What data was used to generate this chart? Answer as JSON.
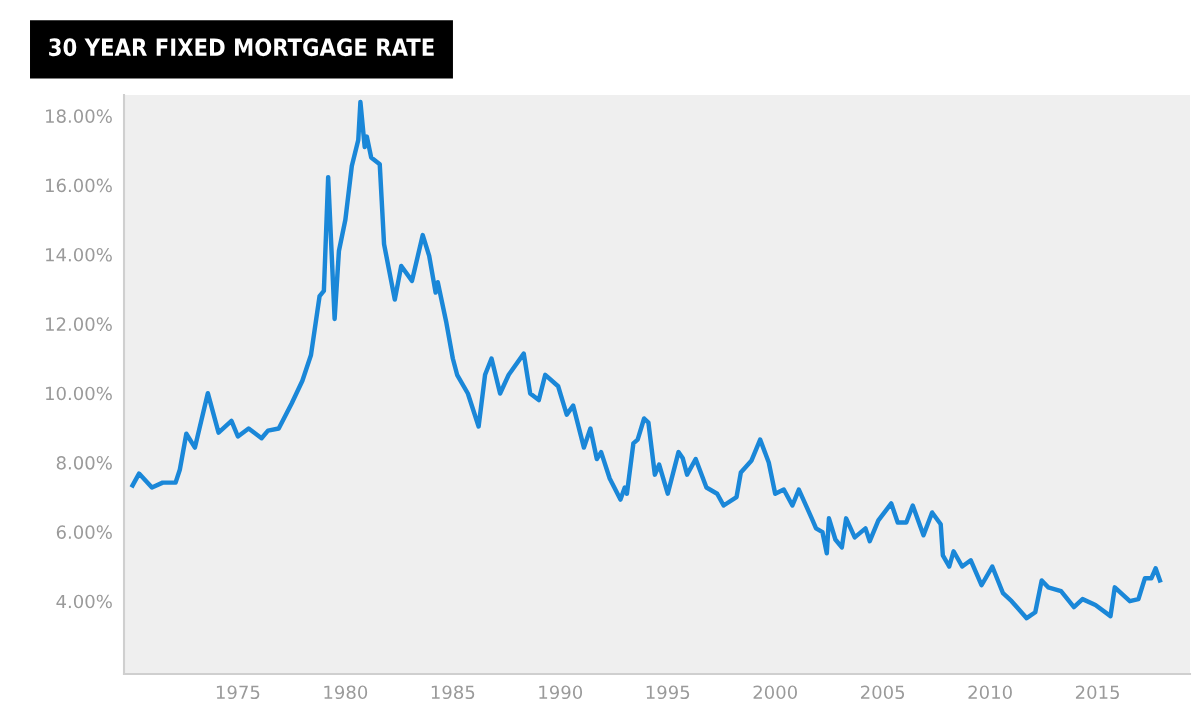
{
  "chart_data": {
    "type": "line",
    "title": "30 YEAR FIXED MORTGAGE RATE",
    "x": [
      1970.1,
      1970.4,
      1971.0,
      1971.5,
      1972.1,
      1972.3,
      1972.6,
      1973.0,
      1973.6,
      1974.1,
      1974.7,
      1975.0,
      1975.5,
      1976.1,
      1976.4,
      1976.9,
      1977.5,
      1978.0,
      1978.4,
      1978.8,
      1979.0,
      1979.2,
      1979.5,
      1979.7,
      1980.0,
      1980.3,
      1980.6,
      1980.7,
      1980.9,
      1981.0,
      1981.2,
      1981.6,
      1981.8,
      1982.3,
      1982.6,
      1983.1,
      1983.6,
      1983.9,
      1984.2,
      1984.3,
      1984.7,
      1985.0,
      1985.2,
      1985.7,
      1986.2,
      1986.5,
      1986.8,
      1987.2,
      1987.6,
      1988.3,
      1988.6,
      1989.0,
      1989.3,
      1989.9,
      1990.3,
      1990.6,
      1991.1,
      1991.4,
      1991.7,
      1991.9,
      1992.3,
      1992.8,
      1993.0,
      1993.1,
      1993.4,
      1993.6,
      1993.9,
      1994.1,
      1994.4,
      1994.6,
      1995.0,
      1995.5,
      1995.7,
      1995.9,
      1996.3,
      1996.8,
      1997.3,
      1997.6,
      1998.2,
      1998.4,
      1998.9,
      1999.3,
      1999.7,
      2000.0,
      2000.4,
      2000.8,
      2001.1,
      2001.7,
      2001.9,
      2002.2,
      2002.4,
      2002.5,
      2002.8,
      2003.1,
      2003.3,
      2003.7,
      2004.2,
      2004.4,
      2004.8,
      2005.4,
      2005.7,
      2006.1,
      2006.4,
      2006.9,
      2007.3,
      2007.7,
      2007.8,
      2008.1,
      2008.3,
      2008.7,
      2009.1,
      2009.6,
      2010.1,
      2010.6,
      2011.0,
      2011.7,
      2012.1,
      2012.4,
      2012.7,
      2013.3,
      2013.9,
      2014.3,
      2014.9,
      2015.6,
      2015.8,
      2016.5,
      2016.9,
      2017.2,
      2017.5,
      2017.7,
      2017.9
    ],
    "series": [
      {
        "color": "#1a87d8",
        "values": [
          7.34,
          7.68,
          7.28,
          7.42,
          7.42,
          7.8,
          8.83,
          8.43,
          10.0,
          8.86,
          9.2,
          8.75,
          8.98,
          8.7,
          8.92,
          8.98,
          9.7,
          10.36,
          11.1,
          12.8,
          12.95,
          16.23,
          12.14,
          14.1,
          15.0,
          16.55,
          17.3,
          18.4,
          17.1,
          17.4,
          16.8,
          16.6,
          14.3,
          12.7,
          13.67,
          13.24,
          14.56,
          13.96,
          12.9,
          13.2,
          12.03,
          11.0,
          10.53,
          9.99,
          9.04,
          10.53,
          11.0,
          9.99,
          10.53,
          11.14,
          9.99,
          9.8,
          10.53,
          10.2,
          9.38,
          9.64,
          8.43,
          8.98,
          8.1,
          8.3,
          7.54,
          6.93,
          7.28,
          7.1,
          8.55,
          8.66,
          9.27,
          9.15,
          7.65,
          7.94,
          7.1,
          8.3,
          8.12,
          7.65,
          8.1,
          7.28,
          7.1,
          6.76,
          7.0,
          7.71,
          8.06,
          8.66,
          8.0,
          7.1,
          7.22,
          6.76,
          7.22,
          6.39,
          6.1,
          5.99,
          5.38,
          6.39,
          5.78,
          5.55,
          6.39,
          5.84,
          6.1,
          5.73,
          6.33,
          6.82,
          6.27,
          6.27,
          6.76,
          5.9,
          6.56,
          6.22,
          5.32,
          5.0,
          5.44,
          5.0,
          5.18,
          4.46,
          5.0,
          4.23,
          4.0,
          3.51,
          3.68,
          4.6,
          4.4,
          4.29,
          3.83,
          4.06,
          3.89,
          3.57,
          4.4,
          4.0,
          4.06,
          4.66,
          4.66,
          4.95,
          4.6
        ]
      }
    ],
    "xlim": [
      1969.7,
      2019.3
    ],
    "xticks": [
      1975,
      1980,
      1985,
      1990,
      1995,
      2000,
      2005,
      2010,
      2015
    ],
    "ylim": [
      1.9,
      18.6
    ],
    "yticks": [
      {
        "value": 4,
        "label": "4.00%"
      },
      {
        "value": 6,
        "label": "6.00%"
      },
      {
        "value": 8,
        "label": "8.00%"
      },
      {
        "value": 10,
        "label": "10.00%"
      },
      {
        "value": 12,
        "label": "12.00%"
      },
      {
        "value": 14,
        "label": "14.00%"
      },
      {
        "value": 16,
        "label": "16.00%"
      },
      {
        "value": 18,
        "label": "18.00%"
      }
    ],
    "grid": false,
    "legend": false,
    "marker": "none",
    "line_style": "solid"
  }
}
